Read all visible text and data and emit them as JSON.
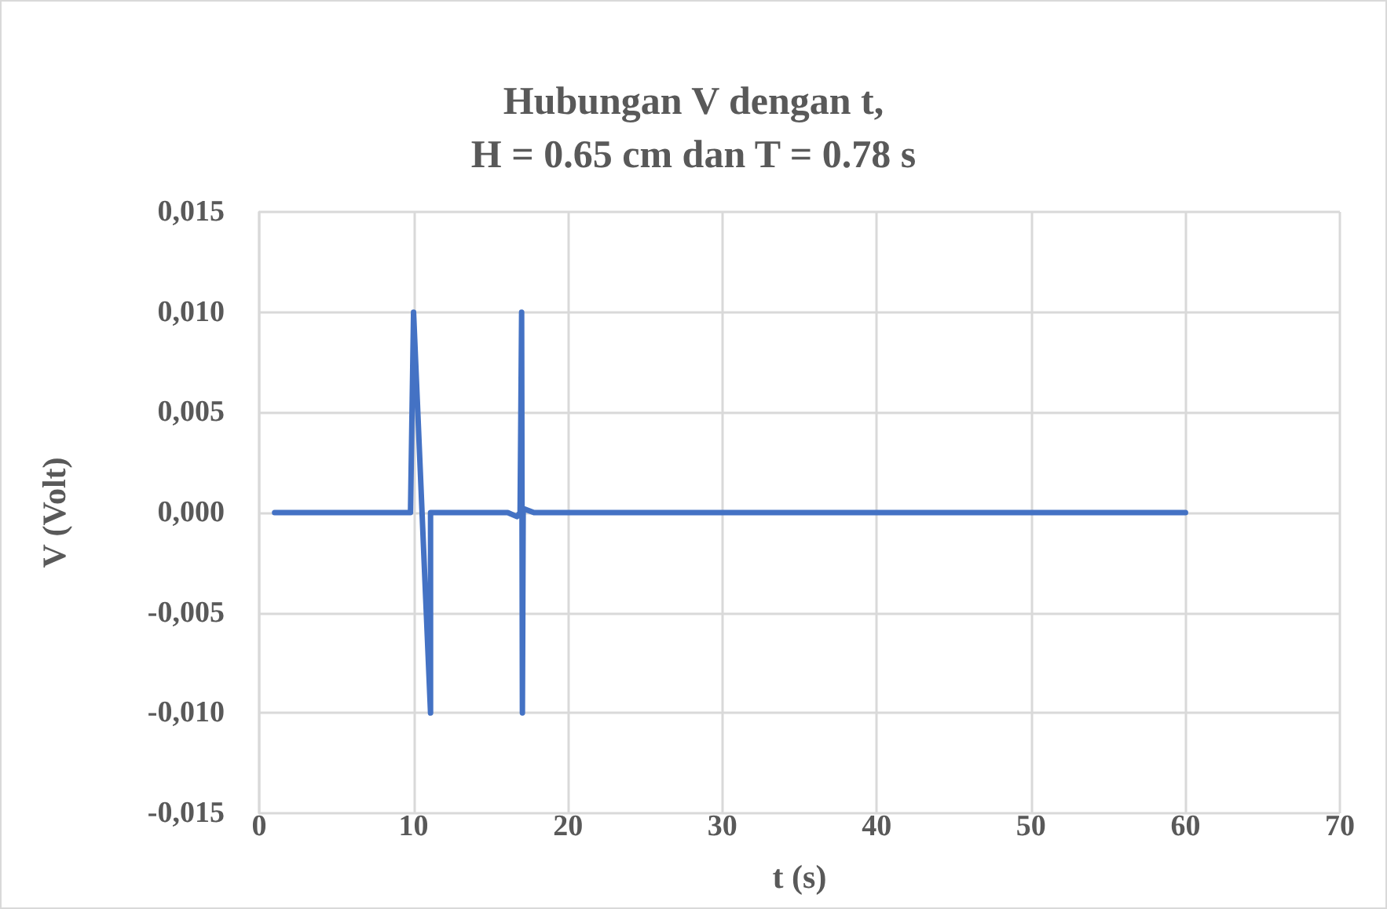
{
  "chart_data": {
    "type": "line",
    "title": "Hubungan V dengan t,\nH = 0.65 cm dan T = 0.78 s",
    "xlabel": "t (s)",
    "ylabel": "V (Volt)",
    "series": [
      {
        "color": "#4472c4",
        "x": [
          1,
          9.8,
          10,
          11.1,
          11.1,
          16.1,
          16.7,
          16.9,
          17,
          17.05,
          17.1,
          17.8,
          60
        ],
        "values": [
          0,
          0,
          0.01,
          -0.01,
          0,
          0,
          -0.0002,
          0,
          0.01,
          -0.01,
          0.0002,
          0,
          0
        ]
      }
    ],
    "xlim": [
      0,
      70
    ],
    "xticks": [
      0,
      10,
      20,
      30,
      40,
      50,
      60,
      70
    ],
    "ylim": [
      -0.015,
      0.015
    ],
    "yticks": [
      {
        "value": -0.015,
        "label": "-0,015"
      },
      {
        "value": -0.01,
        "label": "-0,010"
      },
      {
        "value": -0.005,
        "label": "-0,005"
      },
      {
        "value": 0,
        "label": "0,000"
      },
      {
        "value": 0.005,
        "label": "0,005"
      },
      {
        "value": 0.01,
        "label": "0,010"
      },
      {
        "value": 0.015,
        "label": "0,015"
      }
    ],
    "grid": true,
    "marker": "none",
    "line_style": "solid"
  }
}
